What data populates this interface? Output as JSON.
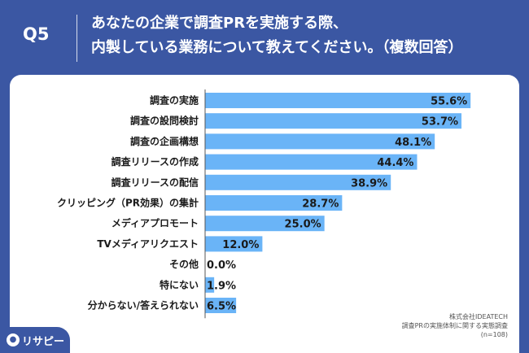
{
  "header": {
    "question_number": "Q5",
    "title_line1": "あなたの企業で調査PRを実施する際、",
    "title_line2": "内製している業務について教えてください。（複数回答）"
  },
  "colors": {
    "background": "#3b57a3",
    "bar": "#6ab4f7",
    "panel": "#ffffff"
  },
  "chart_data": {
    "type": "bar",
    "orientation": "horizontal",
    "categories": [
      "調査の実施",
      "調査の設問検討",
      "調査の企画構想",
      "調査リリースの作成",
      "調査リリースの配信",
      "クリッピング（PR効果）の集計",
      "メディアプロモート",
      "TVメディアリクエスト",
      "その他",
      "特にない",
      "分からない/答えられない"
    ],
    "values": [
      55.6,
      53.7,
      48.1,
      44.4,
      38.9,
      28.7,
      25.0,
      12.0,
      0.0,
      1.9,
      6.5
    ],
    "value_labels": [
      "55.6%",
      "53.7%",
      "48.1%",
      "44.4%",
      "38.9%",
      "28.7%",
      "25.0%",
      "12.0%",
      "0.0%",
      "1.9%",
      "6.5%"
    ],
    "xlim": [
      0,
      60
    ]
  },
  "source": {
    "line1": "株式会社IDEATECH",
    "line2": "調査PRの実施体制に関する実態調査",
    "line3": "(n=108)"
  },
  "logo": {
    "icon": "pin-icon",
    "text": "リサピー"
  }
}
